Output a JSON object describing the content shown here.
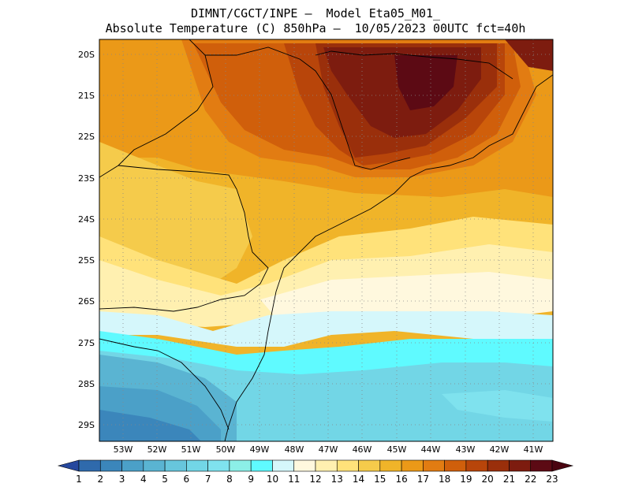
{
  "header": {
    "line1": "DIMNT/CGCT/INPE —  Model Eta05_M01_",
    "line2": "Absolute Temperature (C) 850hPa —  10/05/2023 00UTC fct=40h"
  },
  "axes": {
    "lat_labels": [
      "20S",
      "21S",
      "22S",
      "23S",
      "24S",
      "25S",
      "26S",
      "27S",
      "28S",
      "29S"
    ],
    "lon_labels": [
      "53W",
      "52W",
      "51W",
      "50W",
      "49W",
      "48W",
      "47W",
      "46W",
      "45W",
      "44W",
      "43W",
      "42W",
      "41W"
    ]
  },
  "colorbar": {
    "labels": [
      "1",
      "2",
      "3",
      "4",
      "5",
      "6",
      "7",
      "8",
      "9",
      "10",
      "11",
      "12",
      "13",
      "14",
      "15",
      "16",
      "17",
      "18",
      "19",
      "20",
      "21",
      "22",
      "23"
    ],
    "colors": [
      "#26489e",
      "#2f6aac",
      "#3b86bb",
      "#4ba0c8",
      "#5ab4d2",
      "#67c6dc",
      "#72d6e6",
      "#7fe2ee",
      "#8cefe7",
      "#5ffaff",
      "#d5f7fb",
      "#fff8de",
      "#fff0b0",
      "#ffe27a",
      "#f5cb4b",
      "#f0b429",
      "#eb9918",
      "#e27c12",
      "#d05f0b",
      "#b8450a",
      "#9a2f0b",
      "#7d1c0f",
      "#5c0a14",
      "#4a0410"
    ]
  },
  "chart_data": {
    "type": "heatmap",
    "title": "Absolute Temperature (C) 850hPa — 10/05/2023 00UTC fct=40h",
    "model": "Eta05_M01_",
    "source": "DIMNT/CGCT/INPE",
    "variable": "Absolute Temperature",
    "units": "C",
    "level": "850hPa",
    "forecast_hour": 40,
    "lon_range": [
      -53.8,
      -40.6
    ],
    "lat_range": [
      -29.7,
      -19.9
    ],
    "color_levels": [
      1,
      2,
      3,
      4,
      5,
      6,
      7,
      8,
      9,
      10,
      11,
      12,
      13,
      14,
      15,
      16,
      17,
      18,
      19,
      20,
      21,
      22,
      23
    ],
    "approx_field_regions": [
      {
        "region": "north-central interior (SP/MG)",
        "value": 22
      },
      {
        "region": "north-west interior",
        "value": 18
      },
      {
        "region": "central plateau (PR)",
        "value": 16
      },
      {
        "region": "south coast band 24.5S-26S",
        "value": 12
      },
      {
        "region": "southern ocean 26.5S-27S",
        "value": 11
      },
      {
        "region": "southern ocean 27S-29.5S",
        "value": 9
      },
      {
        "region": "south-west interior (RS)",
        "value": 7
      }
    ]
  }
}
